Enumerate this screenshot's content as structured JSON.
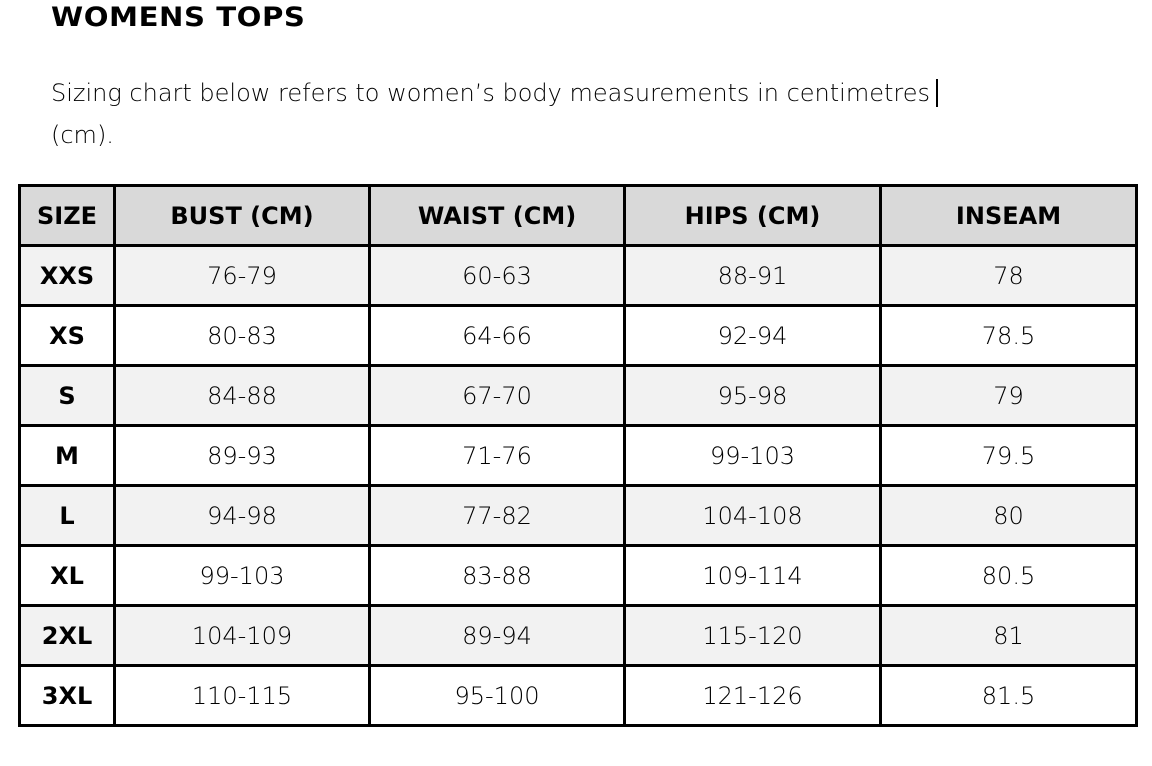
{
  "title": "WOMENS TOPS",
  "intro": "Sizing chart below refers to women’s body measurements in centimetres (cm).",
  "colors": {
    "header_bg": "#d9d9d9",
    "odd_row_bg": "#f2f2f2",
    "even_row_bg": "#ffffff"
  },
  "table": {
    "headers": [
      "SIZE",
      "BUST (CM)",
      "WAIST (CM)",
      "HIPS (CM)",
      "INSEAM"
    ],
    "rows": [
      [
        "XXS",
        "76-79",
        "60-63",
        "88-91",
        "78"
      ],
      [
        "XS",
        "80-83",
        "64-66",
        "92-94",
        "78.5"
      ],
      [
        "S",
        "84-88",
        "67-70",
        "95-98",
        "79"
      ],
      [
        "M",
        "89-93",
        "71-76",
        "99-103",
        "79.5"
      ],
      [
        "L",
        "94-98",
        "77-82",
        "104-108",
        "80"
      ],
      [
        "XL",
        "99-103",
        "83-88",
        "109-114",
        "80.5"
      ],
      [
        "2XL",
        "104-109",
        "89-94",
        "115-120",
        "81"
      ],
      [
        "3XL",
        "110-115",
        "95-100",
        "121-126",
        "81.5"
      ]
    ]
  }
}
